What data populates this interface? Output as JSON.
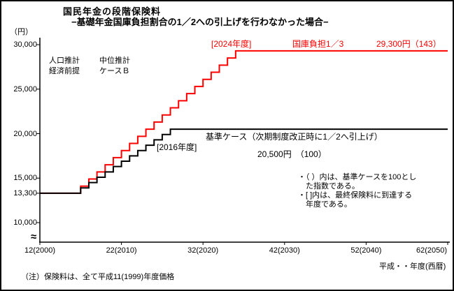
{
  "title": {
    "line1": "国民年金の段階保険料",
    "line2": "−基礎年金国庫負担割合の1／2への引上げを行わなかった場合−"
  },
  "axes": {
    "unit": "（円）",
    "x_note": "平成・・年度(西暦)",
    "break_symbol": "≈",
    "y_ticks": [
      {
        "label": "30,000",
        "value": 30000
      },
      {
        "label": "25,000",
        "value": 25000
      },
      {
        "label": "20,000",
        "value": 20000
      },
      {
        "label": "15,000",
        "value": 15000
      },
      {
        "label": "13,300",
        "value": 13300
      },
      {
        "label": "10,000",
        "value": 10000
      }
    ],
    "x_ticks": [
      {
        "label": "12(2000)",
        "year": 2000
      },
      {
        "label": "22(2010)",
        "year": 2010
      },
      {
        "label": "32(2020)",
        "year": 2020
      },
      {
        "label": "42(2030)",
        "year": 2030
      },
      {
        "label": "52(2040)",
        "year": 2040
      },
      {
        "label": "62(2050)",
        "year": 2050
      }
    ]
  },
  "annotations": {
    "assumption_left": "人口推計\n経済前提",
    "assumption_right": "中位推計\nケースＢ",
    "red_year": "[2024年度]",
    "red_name": "国庫負担1／3",
    "red_value": "29,300円（143）",
    "black_year": "[2016年度]",
    "black_name": "基準ケース（次期制度改正時に1／2へ引上げ）",
    "black_value": "20,500円　（100）",
    "notes": "・（ ）内は、基準ケースを100とし\n　た指数である。\n・[ ]内は、最終保険料に到達する\n　年度である。"
  },
  "footnote": "（注）保険料は、全て平成11(1999)年度価格",
  "colors": {
    "red": "#ff0000",
    "black": "#000000"
  },
  "chart_data": {
    "type": "line",
    "step": true,
    "title": "国民年金の段階保険料 −基礎年金国庫負担割合の1／2への引上げを行わなかった場合−",
    "xlabel": "平成・・年度(西暦)",
    "ylabel": "円",
    "x_range": [
      2000,
      2050
    ],
    "y_range": [
      10000,
      30000
    ],
    "grid": false,
    "legend_position": "inline-annotations",
    "series": [
      {
        "name": "国庫負担1／3",
        "color": "#ff0000",
        "final_year": 2024,
        "final_value": 29300,
        "index_vs_base": 143,
        "points": [
          [
            2000,
            13300
          ],
          [
            2004,
            13300
          ],
          [
            2005,
            14100
          ],
          [
            2006,
            14900
          ],
          [
            2007,
            15700
          ],
          [
            2008,
            16500
          ],
          [
            2009,
            17300
          ],
          [
            2010,
            18100
          ],
          [
            2011,
            18900
          ],
          [
            2012,
            19700
          ],
          [
            2013,
            20500
          ],
          [
            2014,
            21300
          ],
          [
            2015,
            22100
          ],
          [
            2016,
            22900
          ],
          [
            2017,
            23700
          ],
          [
            2018,
            24500
          ],
          [
            2019,
            25300
          ],
          [
            2020,
            26100
          ],
          [
            2021,
            26900
          ],
          [
            2022,
            27700
          ],
          [
            2023,
            28500
          ],
          [
            2024,
            29300
          ],
          [
            2050,
            29300
          ]
        ]
      },
      {
        "name": "基準ケース（次期制度改正時に1／2へ引上げ）",
        "color": "#000000",
        "final_year": 2016,
        "final_value": 20500,
        "index_vs_base": 100,
        "points": [
          [
            2000,
            13300
          ],
          [
            2004,
            13300
          ],
          [
            2005,
            13900
          ],
          [
            2006,
            14500
          ],
          [
            2007,
            15100
          ],
          [
            2008,
            15700
          ],
          [
            2009,
            16300
          ],
          [
            2010,
            16900
          ],
          [
            2011,
            17500
          ],
          [
            2012,
            18100
          ],
          [
            2013,
            18700
          ],
          [
            2014,
            19300
          ],
          [
            2015,
            19900
          ],
          [
            2016,
            20500
          ],
          [
            2050,
            20500
          ]
        ]
      }
    ]
  }
}
